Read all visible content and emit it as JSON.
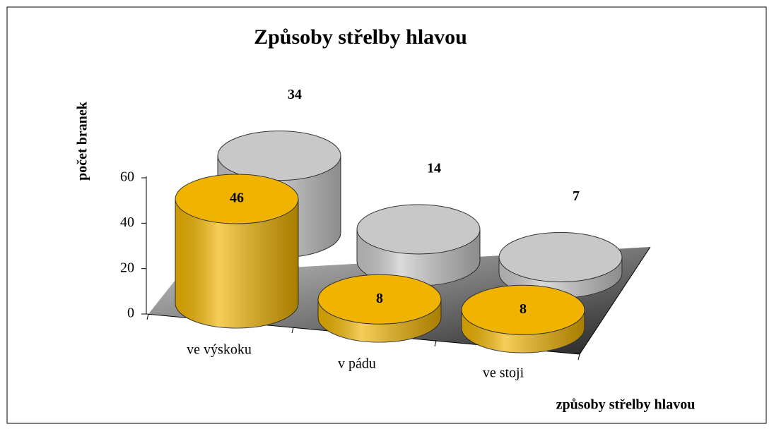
{
  "chart_data": {
    "type": "bar3d",
    "title": "Způsoby střelby hlavou",
    "y_label": "počet branek",
    "x_label": "způsoby střelby hlavou",
    "categories": [
      "ve výskoku",
      "v pádu",
      "ve stoji"
    ],
    "series": [
      {
        "color": "#f0b400",
        "values": [
          46,
          8,
          8
        ]
      },
      {
        "color": "#c8c8c8",
        "values": [
          34,
          14,
          7
        ]
      }
    ],
    "ylim": [
      0,
      60
    ],
    "yticks": [
      0,
      20,
      40,
      60
    ]
  }
}
